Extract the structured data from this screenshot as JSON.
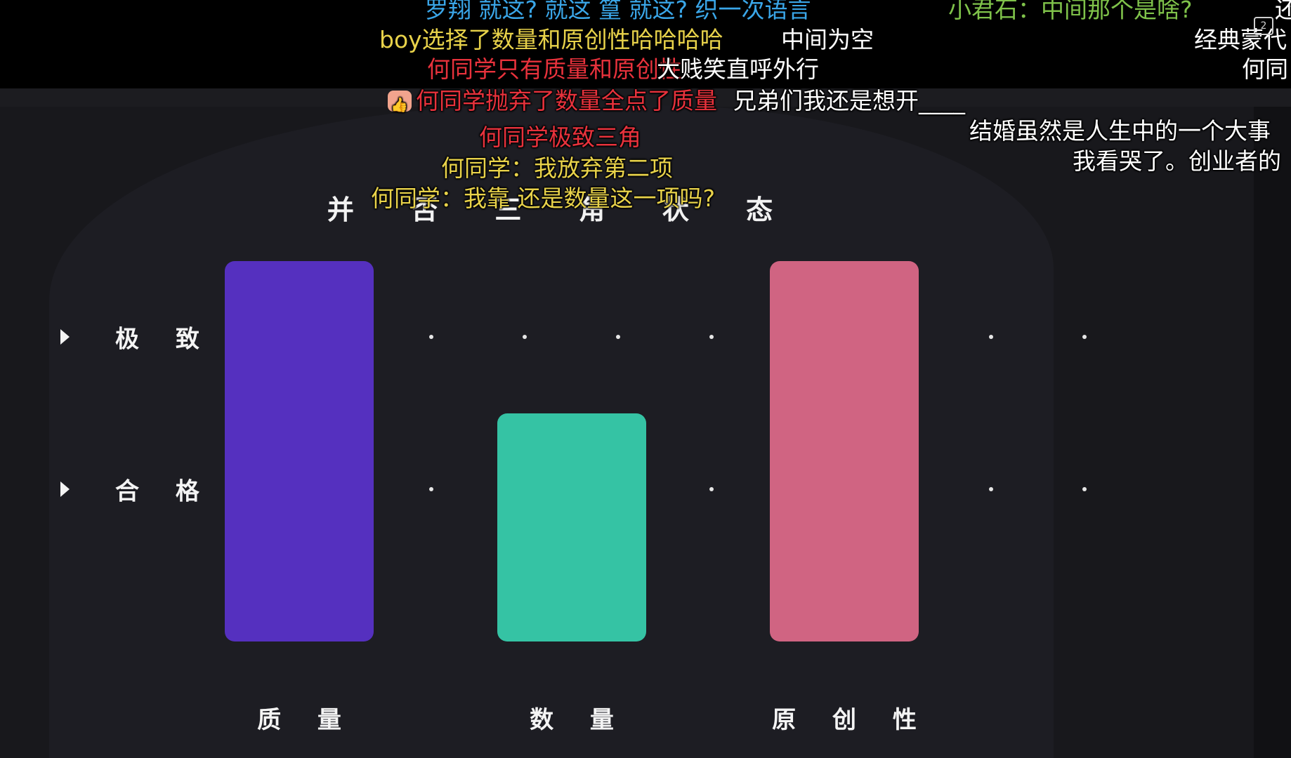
{
  "chart_data": {
    "type": "bar",
    "title": "并 否 三 角 状 态",
    "categories": [
      "质 量",
      "数 量",
      "原 创 性"
    ],
    "values": [
      2.5,
      1.5,
      2.5
    ],
    "colors": [
      "#5530bf",
      "#35c3a4",
      "#d06482"
    ],
    "y_levels": [
      {
        "label": "合 格",
        "value": 1
      },
      {
        "label": "极 致",
        "value": 2
      }
    ],
    "ylim": [
      0,
      2.5
    ],
    "grid": "dotted",
    "legend": "none"
  },
  "danmaku": [
    {
      "text": "罗翔 就这? 就这 篁 就这? 织一次语言",
      "color": "#3aa6e8"
    },
    {
      "text": "小君石：中间那个是啥?",
      "color": "#7fc24a"
    },
    {
      "text": "boy选择了数量和原创性哈哈哈哈",
      "color": "#e8d24a"
    },
    {
      "text": "中间为空",
      "color": "#ffffff"
    },
    {
      "text": "经典蒙代",
      "color": "#ffffff"
    },
    {
      "text": "何同学只有质量和原创性",
      "color": "#e8323c"
    },
    {
      "text": "大贱笑直呼外行",
      "color": "#ffffff"
    },
    {
      "text": "何同",
      "color": "#ffffff"
    },
    {
      "text": "何同学抛弃了数量全点了质量",
      "color": "#e8323c"
    },
    {
      "text": "兄弟们我还是想开____",
      "color": "#ffffff"
    },
    {
      "text": "结婚虽然是人生中的一个大事",
      "color": "#ffffff"
    },
    {
      "text": "何同学极致三角",
      "color": "#e8323c"
    },
    {
      "text": "我看哭了。创业者的",
      "color": "#ffffff"
    },
    {
      "text": "何同学：我放弃第二项",
      "color": "#e8d24a"
    },
    {
      "text": "何同学：我靠 还是数量这一项吗?",
      "color": "#e8d24a"
    },
    {
      "text": "还",
      "color": "#ffffff"
    }
  ]
}
